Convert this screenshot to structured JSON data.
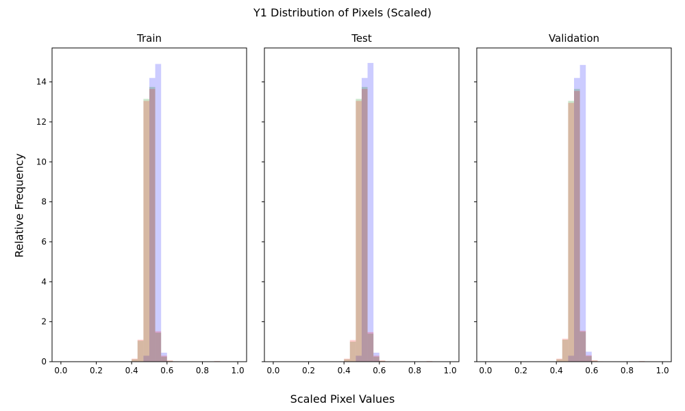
{
  "figure": {
    "suptitle": "Y1 Distribution of Pixels (Scaled)",
    "supxlabel": "Scaled Pixel Values",
    "supylabel": "Relative Frequency"
  },
  "chart_data": [
    {
      "type": "bar",
      "title": "Train",
      "xlim": [
        -0.05,
        1.05
      ],
      "ylim": [
        0,
        15.7
      ],
      "xticks": [
        "0.0",
        "0.2",
        "0.4",
        "0.6",
        "0.8",
        "1.0"
      ],
      "yticks": [
        "0",
        "2",
        "4",
        "6",
        "8",
        "10",
        "12",
        "14"
      ],
      "grid": false,
      "bin_width": 0.0333,
      "series": [
        {
          "color": "#0000ff",
          "opacity": 0.2,
          "x": [
            0.4667,
            0.5,
            0.5333,
            0.5667
          ],
          "values": [
            0.3,
            14.2,
            14.9,
            0.45
          ]
        },
        {
          "color": "#008000",
          "opacity": 0.2,
          "x": [
            0.4,
            0.4333,
            0.4667,
            0.5,
            0.5333,
            0.5667,
            0.6,
            0.8667
          ],
          "values": [
            0.12,
            1.05,
            13.15,
            13.75,
            1.45,
            0.25,
            0.04,
            0.02
          ]
        },
        {
          "color": "#ff0000",
          "opacity": 0.2,
          "x": [
            0.4,
            0.4333,
            0.4667,
            0.5,
            0.5333,
            0.5667,
            0.6,
            0.6333,
            0.8667
          ],
          "values": [
            0.15,
            1.1,
            13.05,
            13.65,
            1.52,
            0.3,
            0.06,
            0.02,
            0.03
          ]
        }
      ]
    },
    {
      "type": "bar",
      "title": "Test",
      "xlim": [
        -0.05,
        1.05
      ],
      "ylim": [
        0,
        15.7
      ],
      "xticks": [
        "0.0",
        "0.2",
        "0.4",
        "0.6",
        "0.8",
        "1.0"
      ],
      "yticks": [
        "0",
        "2",
        "4",
        "6",
        "8",
        "10",
        "12",
        "14"
      ],
      "grid": false,
      "bin_width": 0.0333,
      "series": [
        {
          "color": "#0000ff",
          "opacity": 0.2,
          "x": [
            0.4667,
            0.5,
            0.5333,
            0.5667
          ],
          "values": [
            0.3,
            14.2,
            14.95,
            0.45
          ]
        },
        {
          "color": "#008000",
          "opacity": 0.2,
          "x": [
            0.4,
            0.4333,
            0.4667,
            0.5,
            0.5333,
            0.5667,
            0.6,
            0.8667
          ],
          "values": [
            0.12,
            1.0,
            13.15,
            13.75,
            1.4,
            0.25,
            0.04,
            0.02
          ]
        },
        {
          "color": "#ff0000",
          "opacity": 0.2,
          "x": [
            0.4,
            0.4333,
            0.4667,
            0.5,
            0.5333,
            0.5667,
            0.6,
            0.6333,
            0.8667
          ],
          "values": [
            0.15,
            1.08,
            13.05,
            13.65,
            1.48,
            0.3,
            0.06,
            0.02,
            0.03
          ]
        }
      ]
    },
    {
      "type": "bar",
      "title": "Validation",
      "xlim": [
        -0.05,
        1.05
      ],
      "ylim": [
        0,
        15.7
      ],
      "xticks": [
        "0.0",
        "0.2",
        "0.4",
        "0.6",
        "0.8",
        "1.0"
      ],
      "yticks": [
        "0",
        "2",
        "4",
        "6",
        "8",
        "10",
        "12",
        "14"
      ],
      "grid": false,
      "bin_width": 0.0333,
      "series": [
        {
          "color": "#0000ff",
          "opacity": 0.2,
          "x": [
            0.4667,
            0.5,
            0.5333,
            0.5667
          ],
          "values": [
            0.3,
            14.2,
            14.85,
            0.5
          ]
        },
        {
          "color": "#008000",
          "opacity": 0.2,
          "x": [
            0.4,
            0.4333,
            0.4667,
            0.5,
            0.5333,
            0.5667,
            0.6,
            0.8667
          ],
          "values": [
            0.12,
            1.1,
            13.05,
            13.65,
            1.5,
            0.28,
            0.05,
            0.02
          ]
        },
        {
          "color": "#ff0000",
          "opacity": 0.2,
          "x": [
            0.4,
            0.4333,
            0.4667,
            0.5,
            0.5333,
            0.5667,
            0.6,
            0.6333,
            0.8667
          ],
          "values": [
            0.15,
            1.15,
            12.95,
            13.55,
            1.55,
            0.32,
            0.07,
            0.02,
            0.03
          ]
        }
      ]
    }
  ]
}
